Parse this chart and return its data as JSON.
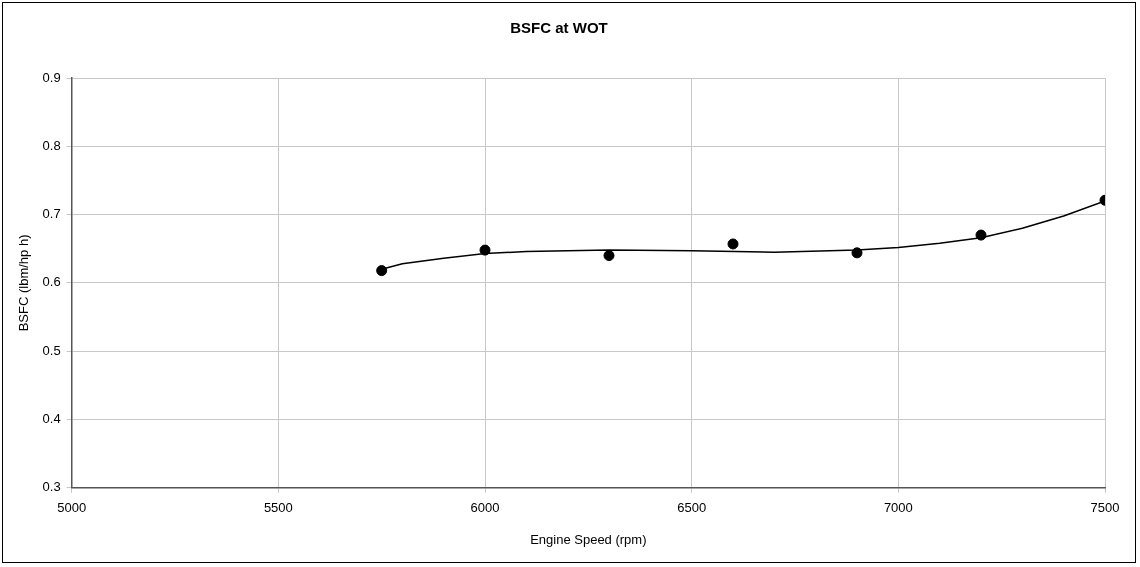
{
  "chart_data": {
    "type": "scatter",
    "title": "BSFC at WOT",
    "xlabel": "Engine Speed (rpm)",
    "ylabel": "BSFC (lbm/hp h)",
    "xlim": [
      5000,
      7500
    ],
    "xticks": [
      5000,
      5500,
      6000,
      6500,
      7000,
      7500
    ],
    "ylim": [
      0.3,
      0.9
    ],
    "yticks": [
      0.3,
      0.4,
      0.5,
      0.6,
      0.7,
      0.8,
      0.9
    ],
    "grid": true,
    "legend": false,
    "series": [
      {
        "marker": "circle",
        "color": "#000000",
        "x": [
          5750,
          6000,
          6300,
          6600,
          6900,
          7200,
          7500
        ],
        "values": [
          0.618,
          0.648,
          0.64,
          0.657,
          0.644,
          0.67,
          0.721
        ]
      },
      {
        "type": "line",
        "marker": "none",
        "line_style": "solid",
        "color": "#000000",
        "x": [
          5750,
          5800,
          5900,
          6000,
          6100,
          6300,
          6500,
          6700,
          6900,
          7000,
          7100,
          7200,
          7300,
          7400,
          7500
        ],
        "values": [
          0.62,
          0.628,
          0.636,
          0.643,
          0.646,
          0.648,
          0.647,
          0.645,
          0.648,
          0.652,
          0.658,
          0.666,
          0.68,
          0.698,
          0.72
        ]
      }
    ]
  }
}
